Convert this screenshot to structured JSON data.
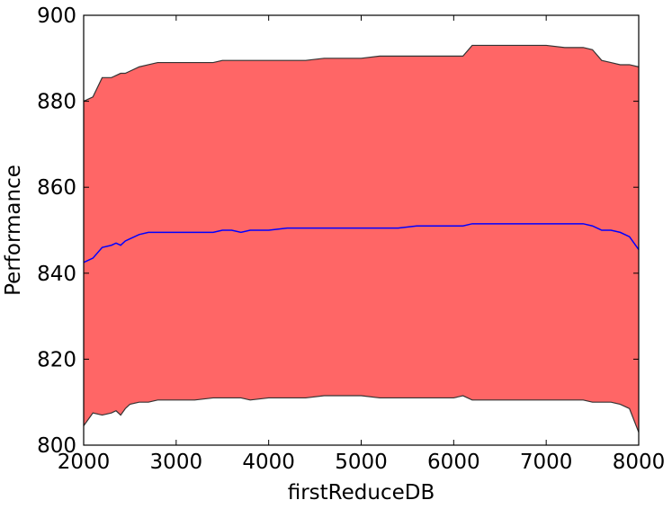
{
  "chart_data": {
    "type": "area",
    "title": "",
    "xlabel": "firstReduceDB",
    "ylabel": "Performance",
    "xlim": [
      2000,
      8000
    ],
    "ylim": [
      800,
      900
    ],
    "xticks": [
      2000,
      3000,
      4000,
      5000,
      6000,
      7000,
      8000
    ],
    "yticks": [
      800,
      820,
      840,
      860,
      880,
      900
    ],
    "grid": false,
    "colors": {
      "band_fill": "#ff6666",
      "band_edge": "#333333",
      "mean_line": "#0000ff"
    },
    "x": [
      2000,
      2100,
      2200,
      2300,
      2350,
      2400,
      2450,
      2500,
      2600,
      2700,
      2800,
      3000,
      3200,
      3400,
      3500,
      3600,
      3700,
      3800,
      4000,
      4200,
      4400,
      4600,
      4800,
      5000,
      5200,
      5400,
      5600,
      5800,
      6000,
      6100,
      6200,
      6400,
      6600,
      6800,
      7000,
      7200,
      7400,
      7500,
      7600,
      7700,
      7800,
      7900,
      8000
    ],
    "series": [
      {
        "values": [
          804.5,
          807.5,
          807.0,
          807.5,
          808.0,
          807.0,
          808.5,
          809.5,
          810.0,
          810.0,
          810.5,
          810.5,
          810.5,
          811.0,
          811.0,
          811.0,
          811.0,
          810.5,
          811.0,
          811.0,
          811.0,
          811.5,
          811.5,
          811.5,
          811.0,
          811.0,
          811.0,
          811.0,
          811.0,
          811.5,
          810.5,
          810.5,
          810.5,
          810.5,
          810.5,
          810.5,
          810.5,
          810.0,
          810.0,
          810.0,
          809.5,
          808.5,
          803.0
        ]
      },
      {
        "values": [
          842.5,
          843.5,
          846.0,
          846.5,
          847.0,
          846.5,
          847.5,
          848.0,
          849.0,
          849.5,
          849.5,
          849.5,
          849.5,
          849.5,
          850.0,
          850.0,
          849.5,
          850.0,
          850.0,
          850.5,
          850.5,
          850.5,
          850.5,
          850.5,
          850.5,
          850.5,
          851.0,
          851.0,
          851.0,
          851.0,
          851.5,
          851.5,
          851.5,
          851.5,
          851.5,
          851.5,
          851.5,
          851.0,
          850.0,
          850.0,
          849.5,
          848.5,
          845.5
        ]
      },
      {
        "values": [
          880.0,
          881.0,
          885.5,
          885.5,
          886.0,
          886.5,
          886.5,
          887.0,
          888.0,
          888.5,
          889.0,
          889.0,
          889.0,
          889.0,
          889.5,
          889.5,
          889.5,
          889.5,
          889.5,
          889.5,
          889.5,
          890.0,
          890.0,
          890.0,
          890.5,
          890.5,
          890.5,
          890.5,
          890.5,
          890.5,
          893.0,
          893.0,
          893.0,
          893.0,
          893.0,
          892.5,
          892.5,
          892.0,
          889.5,
          889.0,
          888.5,
          888.5,
          888.0
        ]
      }
    ]
  }
}
